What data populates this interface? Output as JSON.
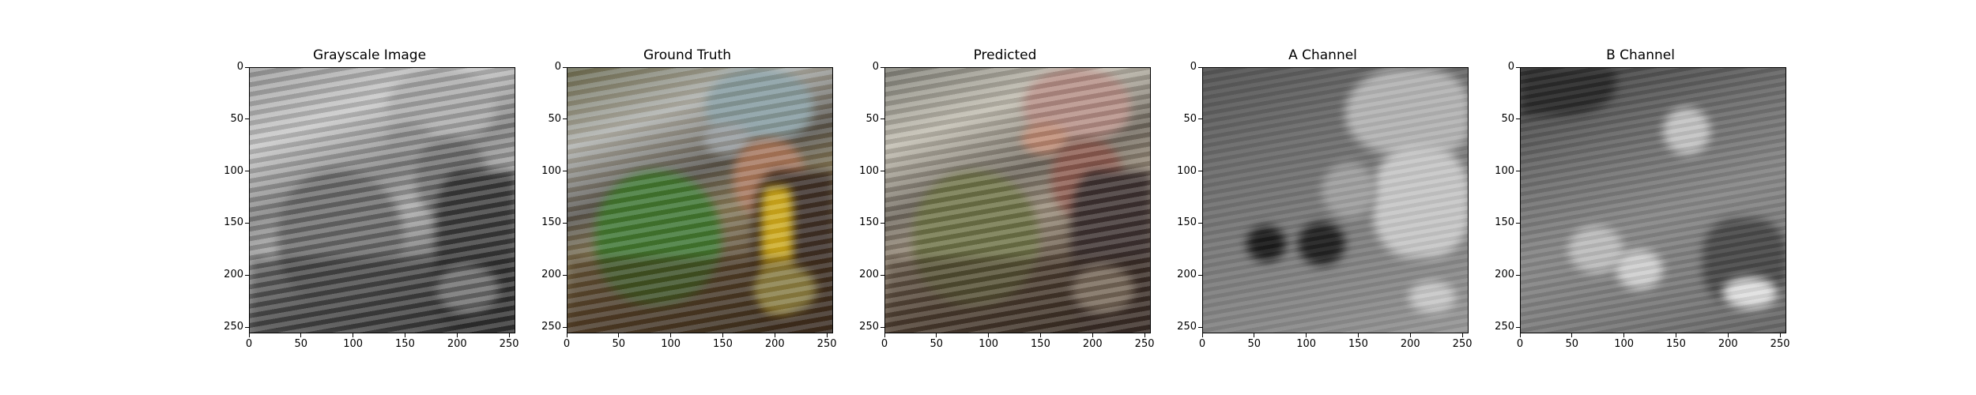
{
  "figure": {
    "panels": [
      {
        "id": "grayscale",
        "title": "Grayscale Image",
        "colorized": false
      },
      {
        "id": "ground-truth",
        "title": "Ground Truth",
        "colorized": true
      },
      {
        "id": "predicted",
        "title": "Predicted",
        "colorized": true
      },
      {
        "id": "a-channel",
        "title": "A Channel",
        "colorized": false
      },
      {
        "id": "b-channel",
        "title": "B Channel",
        "colorized": false
      }
    ],
    "axes": {
      "x_ticks": [
        "0",
        "50",
        "100",
        "150",
        "200",
        "250"
      ],
      "y_ticks": [
        "0",
        "50",
        "100",
        "150",
        "200",
        "250"
      ],
      "range": [
        0,
        256
      ]
    },
    "colors": {
      "text": "#000000",
      "background": "#ffffff",
      "leaf_green_gt": "#3f7a2f",
      "leaf_green_pred": "#6e7448",
      "shirt_yellow": "#d9b21b"
    }
  }
}
